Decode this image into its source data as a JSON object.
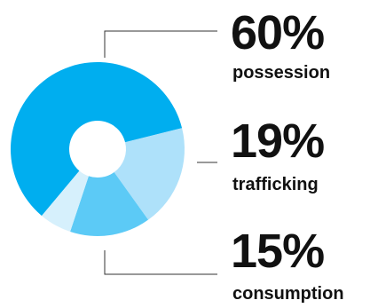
{
  "chart_data": {
    "type": "donut",
    "categories": [
      "possession",
      "trafficking",
      "consumption",
      null
    ],
    "values": [
      60,
      19,
      15,
      6
    ],
    "value_labels": [
      "60%",
      "19%",
      "15%",
      null
    ],
    "colors": [
      "#00aeef",
      "#aee1fa",
      "#5ccaf6",
      "#d6f0fc"
    ]
  }
}
